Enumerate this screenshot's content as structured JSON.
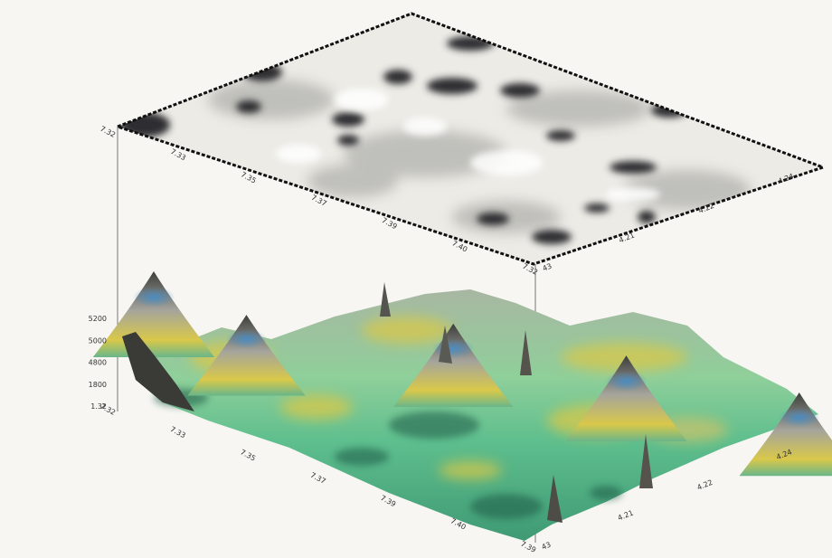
{
  "chart_data": {
    "type": "surface3d",
    "title": "",
    "xlabel": "",
    "ylabel": "",
    "zlabel": "",
    "top_panel": "grayscale plan-view image of the same surface",
    "grid": false,
    "legend": "none",
    "colors": {
      "top_light": "#f2f1ed",
      "top_dark": "#2a2a2e",
      "surface_low": "#2e8d6f",
      "surface_mid": "#d9c84a",
      "surface_high": "#8a8a86",
      "peak_tint": "#5aa9d6"
    },
    "top_axis_left_ticks": [
      "7.32",
      "7.33",
      "7.35",
      "7.37",
      "7.39",
      "7.40",
      "7.32"
    ],
    "top_axis_right_ticks": [
      "43",
      "4.21",
      "4.22",
      "4.24"
    ],
    "bottom_axis_left_ticks": [
      "7.32",
      "7.33",
      "7.35",
      "7.37",
      "7.39",
      "7.40",
      "7.39"
    ],
    "bottom_axis_right_ticks": [
      "43",
      "4.21",
      "4.22",
      "4.24"
    ],
    "z_ticks": [
      "5200",
      "5000",
      "4800",
      "1800",
      "1.32"
    ],
    "peaks": [
      {
        "x": 7.32,
        "y": 4.2,
        "z": 5200
      },
      {
        "x": 7.34,
        "y": 4.2,
        "z": 5000
      },
      {
        "x": 7.35,
        "y": 4.22,
        "z": 5100
      },
      {
        "x": 7.37,
        "y": 4.23,
        "z": 5200
      },
      {
        "x": 7.39,
        "y": 4.24,
        "z": 5100
      }
    ]
  }
}
